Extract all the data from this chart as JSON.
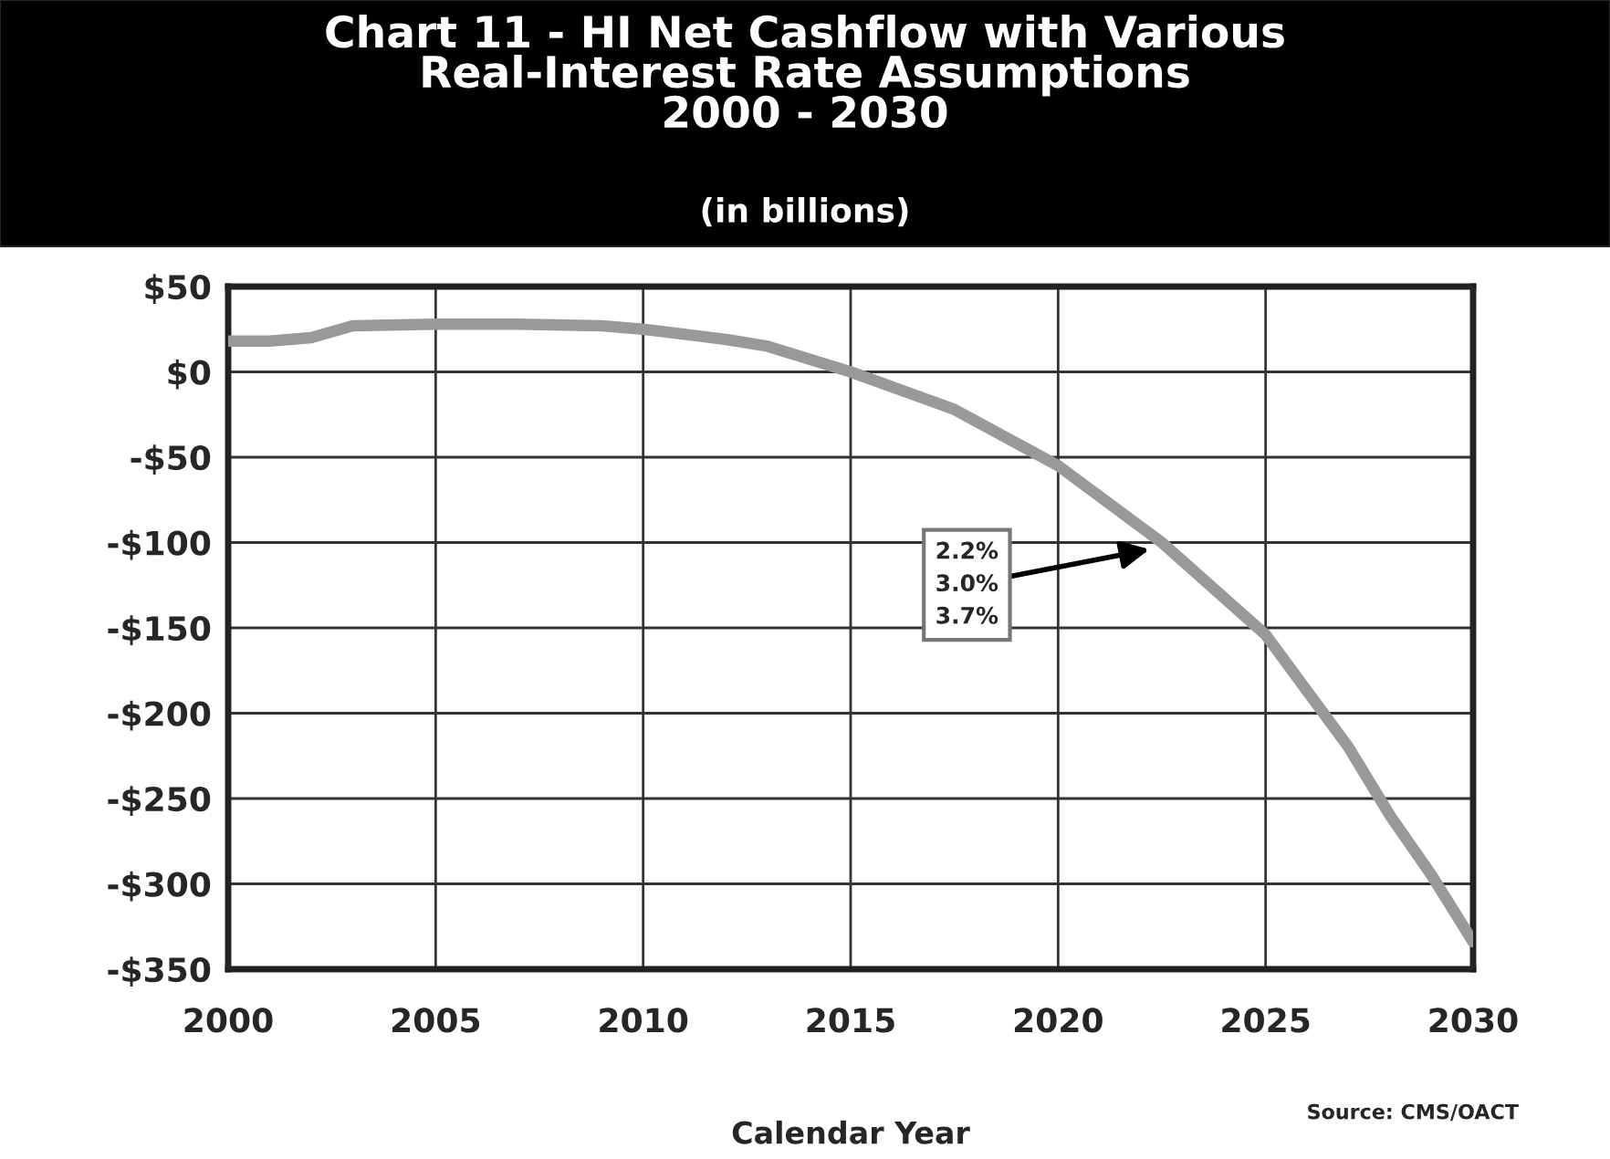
{
  "chart_data": {
    "type": "line",
    "title": "Chart 11 - HI Net Cashflow with Various\nReal-Interest Rate Assumptions\n2000 - 2030",
    "subtitle": "(in billions)",
    "xlabel": "Calendar Year",
    "x": [
      2000,
      2001,
      2002,
      2003,
      2005,
      2007,
      2009,
      2010,
      2012,
      2013,
      2015,
      2017.5,
      2020,
      2022.5,
      2025,
      2027,
      2028,
      2029,
      2030
    ],
    "series": [
      {
        "color": "#999999",
        "values": [
          18,
          18,
          20,
          27,
          28,
          28,
          27,
          25,
          19,
          15,
          0,
          -22,
          -55,
          -100,
          -154,
          -220,
          -260,
          -295,
          -334
        ]
      }
    ],
    "xlim": [
      2000,
      2030
    ],
    "xticks": [
      2000,
      2005,
      2010,
      2015,
      2020,
      2025,
      2030
    ],
    "ylim": [
      -350,
      50
    ],
    "yticks": [
      {
        "value": 50,
        "label": "$50"
      },
      {
        "value": 0,
        "label": "$0"
      },
      {
        "value": -50,
        "label": "-$50"
      },
      {
        "value": -100,
        "label": "-$100"
      },
      {
        "value": -150,
        "label": "-$150"
      },
      {
        "value": -200,
        "label": "-$200"
      },
      {
        "value": -250,
        "label": "-$250"
      },
      {
        "value": -300,
        "label": "-$300"
      },
      {
        "value": -350,
        "label": "-$350"
      }
    ],
    "annotations": [
      {
        "text": "2.2%\n3.0%\n3.7%",
        "x": 2022.2,
        "y": -104
      },
      "Source: CMS/OACT"
    ],
    "grid": true,
    "legend": false,
    "marker": "none",
    "line_style": "solid"
  }
}
